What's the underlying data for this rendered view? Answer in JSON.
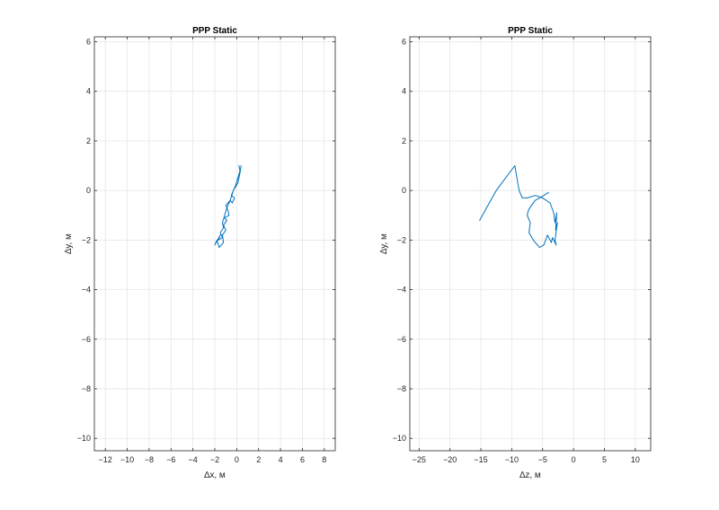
{
  "chart_data": [
    {
      "type": "line",
      "title": "PPP Static",
      "xlabel": "∆x, м",
      "ylabel": "∆y, м",
      "xlim": [
        -13,
        9
      ],
      "ylim": [
        -10.5,
        6.2
      ],
      "xticks": [
        -12,
        -10,
        -8,
        -6,
        -4,
        -2,
        0,
        2,
        4,
        6,
        8
      ],
      "yticks": [
        -10,
        -8,
        -6,
        -4,
        -2,
        0,
        2,
        4,
        6
      ],
      "grid": true,
      "color": "#0072bd",
      "series": [
        {
          "x": [
            0.4,
            0.3,
            0.1,
            -0.3,
            -0.6,
            -0.9,
            -1.1,
            -1.3,
            -1.2,
            -1.5,
            -1.3,
            -1.7,
            -1.5,
            -2.0,
            -1.8,
            -1.6,
            -1.2,
            -1.3,
            -1.0,
            -1.2,
            -0.9,
            -1.1,
            -0.7,
            -0.8,
            -1.0,
            -0.6,
            -0.4,
            -0.2,
            -0.5,
            -0.3,
            -0.1,
            0.1,
            0.3,
            0.2
          ],
          "y": [
            1.0,
            0.7,
            0.3,
            0.0,
            -0.4,
            -0.7,
            -1.0,
            -1.3,
            -1.5,
            -1.7,
            -1.9,
            -2.0,
            -1.8,
            -2.2,
            -2.0,
            -2.3,
            -2.1,
            -1.8,
            -1.6,
            -1.4,
            -1.2,
            -1.1,
            -1.0,
            -0.8,
            -0.6,
            -0.4,
            -0.5,
            -0.3,
            -0.2,
            0.0,
            0.2,
            0.5,
            0.8,
            1.0
          ]
        }
      ]
    },
    {
      "type": "line",
      "title": "PPP Static",
      "xlabel": "∆z, м",
      "ylabel": "∆y, м",
      "xlim": [
        -26.5,
        12.5
      ],
      "ylim": [
        -10.5,
        6.2
      ],
      "xticks": [
        -25,
        -20,
        -15,
        -10,
        -5,
        0,
        5,
        10
      ],
      "yticks": [
        -10,
        -8,
        -6,
        -4,
        -2,
        0,
        2,
        4,
        6
      ],
      "grid": true,
      "color": "#0072bd",
      "series": [
        {
          "x": [
            -15.2,
            -12.5,
            -9.5,
            -8.8,
            -8.3,
            -7.5,
            -6.2,
            -5.0,
            -3.8,
            -3.2,
            -3.0,
            -2.7,
            -2.9,
            -2.6,
            -3.0,
            -2.8,
            -3.4,
            -3.6,
            -4.2,
            -4.8,
            -5.5,
            -6.5,
            -7.2,
            -7.0,
            -7.5,
            -7.3,
            -6.8,
            -6.2,
            -5.5,
            -4.8,
            -4.2,
            -4.0
          ],
          "y": [
            -1.2,
            0.0,
            1.0,
            0.0,
            -0.3,
            -0.3,
            -0.2,
            -0.3,
            -0.5,
            -0.9,
            -1.3,
            -0.9,
            -1.6,
            -1.3,
            -2.0,
            -2.2,
            -1.9,
            -2.1,
            -1.8,
            -2.2,
            -2.3,
            -2.0,
            -1.7,
            -1.3,
            -1.0,
            -0.8,
            -0.6,
            -0.4,
            -0.3,
            -0.2,
            -0.1,
            -0.1
          ]
        }
      ]
    }
  ]
}
